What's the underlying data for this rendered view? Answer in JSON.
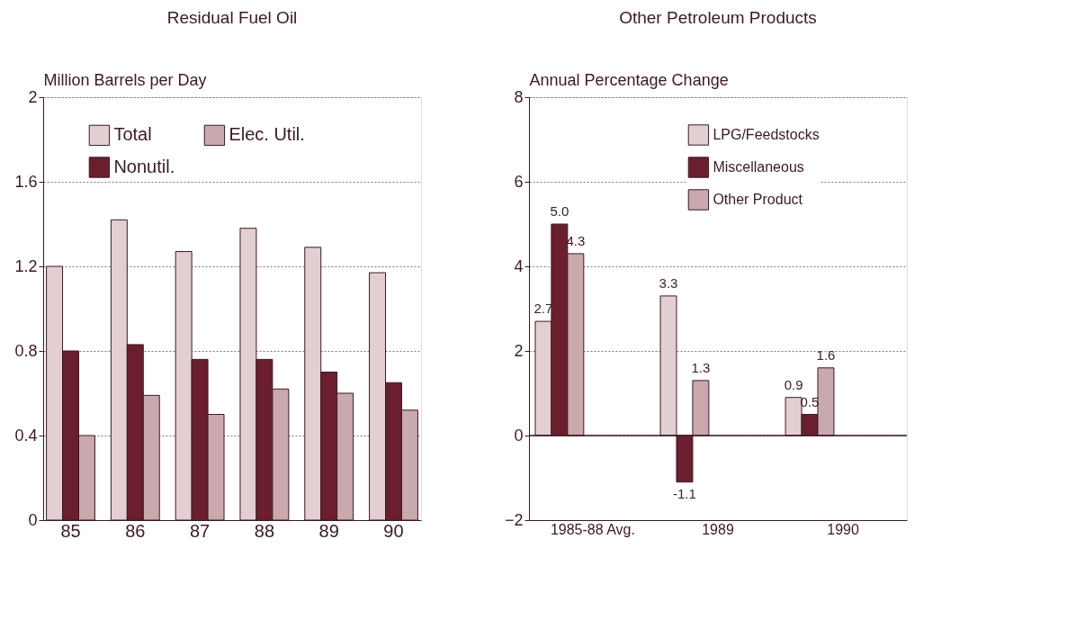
{
  "chart_data": [
    {
      "type": "bar",
      "title": "Residual Fuel Oil",
      "ylabel": "Million Barrels per Day",
      "categories": [
        "85",
        "86",
        "87",
        "88",
        "89",
        "90"
      ],
      "series": [
        {
          "name": "Total",
          "color": "#e3cfd2",
          "values": [
            1.2,
            1.42,
            1.27,
            1.38,
            1.29,
            1.17
          ]
        },
        {
          "name": "Nonutil.",
          "color": "#6b1f2e",
          "values": [
            0.8,
            0.83,
            0.76,
            0.76,
            0.7,
            0.65
          ]
        },
        {
          "name": "Elec. Util.",
          "color": "#c9a9ae",
          "values": [
            0.4,
            0.59,
            0.5,
            0.62,
            0.6,
            0.52
          ]
        }
      ],
      "ylim": [
        0,
        2
      ],
      "yticks": [
        0,
        0.4,
        0.8,
        1.2,
        1.6,
        2
      ],
      "grid": "y",
      "legend": "top"
    },
    {
      "type": "bar",
      "title": "Other Petroleum Products",
      "ylabel": "Annual Percentage Change",
      "categories": [
        "1985-88 Avg.",
        "1989",
        "1990"
      ],
      "series": [
        {
          "name": "LPG/Feedstocks",
          "color": "#e3cfd2",
          "values": [
            2.7,
            3.3,
            0.9
          ],
          "value_labels": [
            "2.7",
            "3.3",
            "0.9"
          ]
        },
        {
          "name": "Miscellaneous",
          "color": "#6b1f2e",
          "values": [
            5.0,
            -1.1,
            0.5
          ],
          "value_labels": [
            "5.0",
            "-1.1",
            "0.5"
          ]
        },
        {
          "name": "Other Product",
          "color": "#c9a9ae",
          "values": [
            4.3,
            1.3,
            1.6
          ],
          "value_labels": [
            "4.3",
            "1.3",
            "1.6"
          ]
        }
      ],
      "ylim": [
        -2,
        8
      ],
      "yticks": [
        -2,
        0,
        2,
        4,
        6,
        8
      ],
      "grid": "y",
      "legend": "top right",
      "ref_lines": [
        {
          "axis": "y",
          "value": 0
        }
      ]
    }
  ]
}
